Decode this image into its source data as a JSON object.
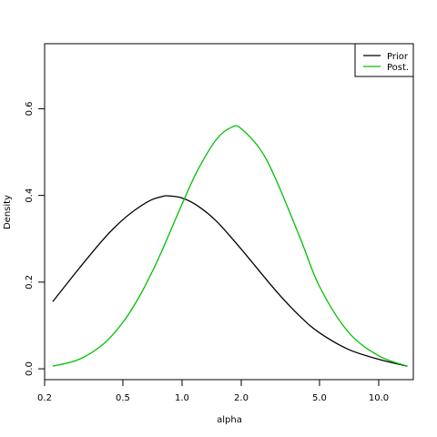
{
  "chart_data": {
    "type": "line",
    "title": "",
    "xlabel": "alpha",
    "ylabel": "Density",
    "x_scale": "log",
    "xlim": [
      0.2,
      15
    ],
    "ylim": [
      -0.025,
      0.75
    ],
    "x_ticks": [
      0.2,
      0.5,
      1.0,
      2.0,
      5.0,
      10.0
    ],
    "x_tick_labels": [
      "0.2",
      "0.5",
      "1.0",
      "2.0",
      "5.0",
      "10.0"
    ],
    "y_ticks": [
      0.0,
      0.2,
      0.4,
      0.6
    ],
    "y_tick_labels": [
      "0.0",
      "0.2",
      "0.4",
      "0.6"
    ],
    "grid": false,
    "legend_position": "top-right",
    "series": [
      {
        "name": "Prior",
        "color": "#000000",
        "x": [
          0.22,
          0.3,
          0.4,
          0.5,
          0.6,
          0.7,
          0.8,
          0.85,
          1.0,
          1.2,
          1.5,
          2.0,
          3.0,
          4.0,
          5.0,
          7.0,
          10.0,
          14.0
        ],
        "y": [
          0.155,
          0.232,
          0.3,
          0.344,
          0.372,
          0.39,
          0.398,
          0.399,
          0.394,
          0.376,
          0.34,
          0.276,
          0.18,
          0.12,
          0.083,
          0.045,
          0.022,
          0.006
        ]
      },
      {
        "name": "Post.",
        "color": "#00c000",
        "x": [
          0.22,
          0.3,
          0.4,
          0.5,
          0.6,
          0.7,
          0.8,
          1.0,
          1.2,
          1.5,
          1.8,
          2.0,
          2.5,
          3.0,
          4.0,
          5.0,
          7.0,
          10.0,
          14.0
        ],
        "y": [
          0.006,
          0.022,
          0.058,
          0.107,
          0.163,
          0.221,
          0.278,
          0.38,
          0.458,
          0.53,
          0.558,
          0.554,
          0.506,
          0.437,
          0.3,
          0.19,
          0.085,
          0.03,
          0.006
        ]
      }
    ]
  }
}
